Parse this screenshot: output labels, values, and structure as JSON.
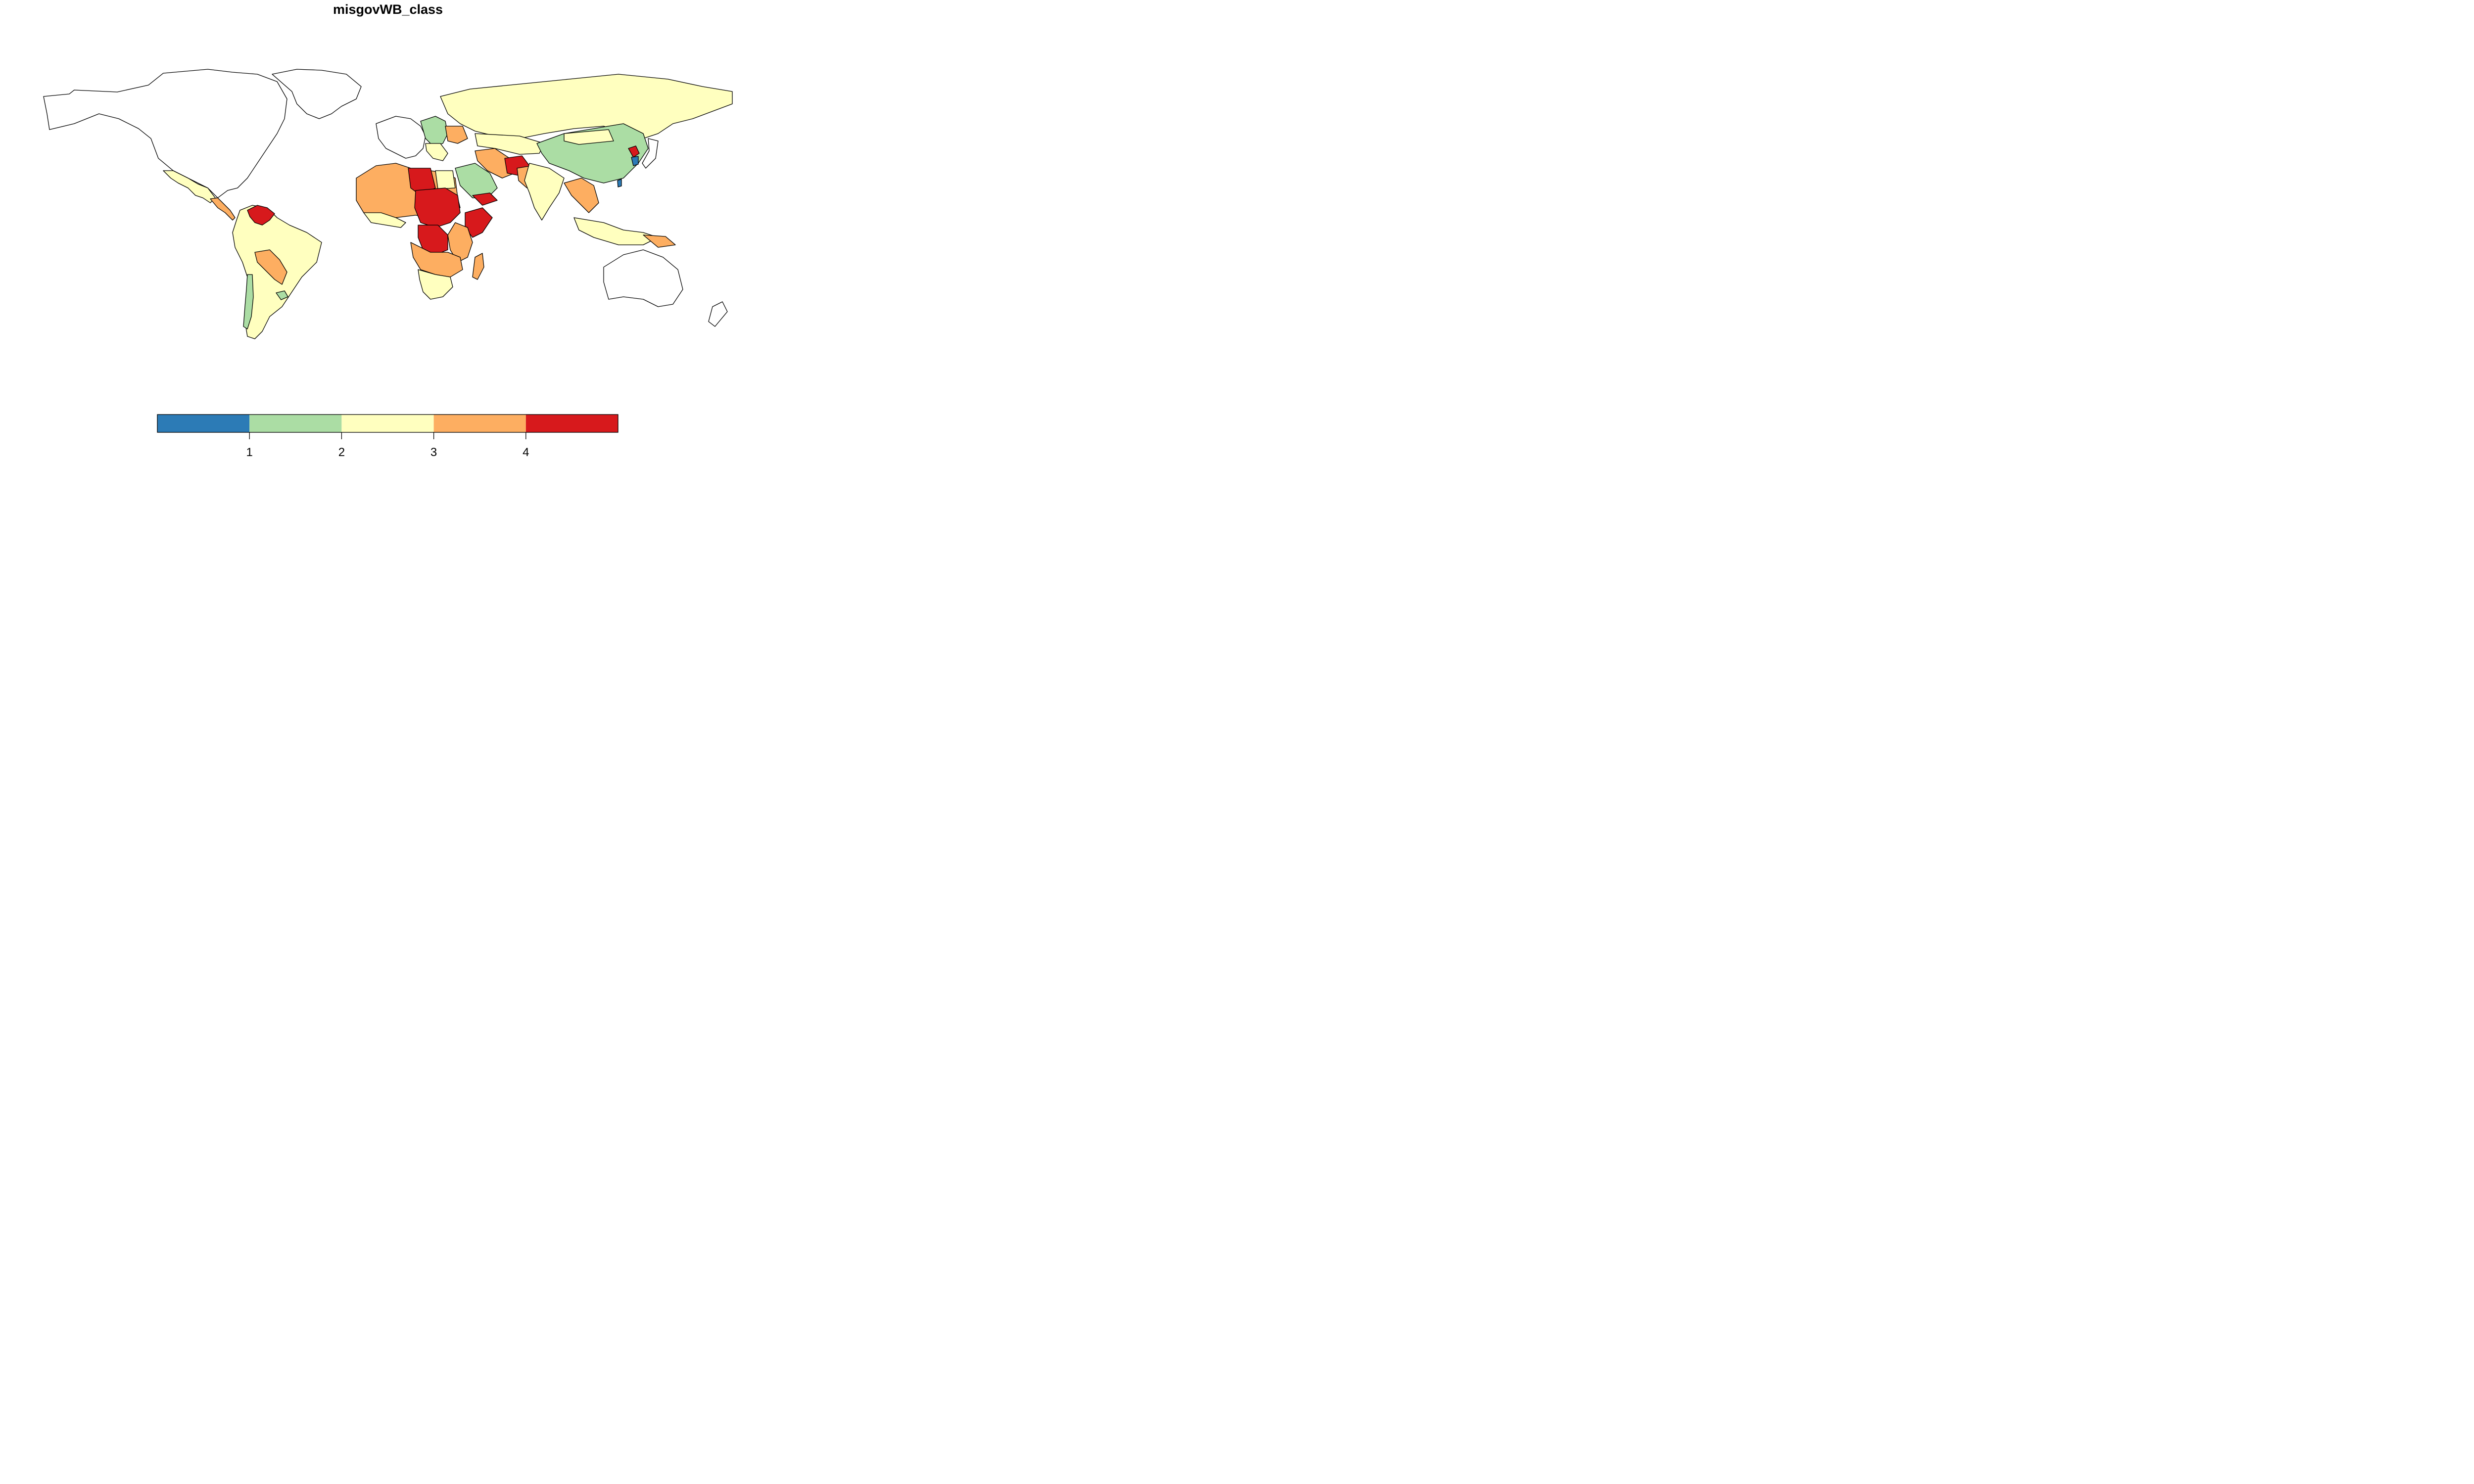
{
  "title": "misgovWB_class",
  "legend": {
    "colors": [
      "#2c7bb6",
      "#abdda4",
      "#ffffbf",
      "#fdae61",
      "#d7191c"
    ],
    "breaks": [
      "1",
      "2",
      "3",
      "4"
    ]
  },
  "chart_data": {
    "type": "choropleth",
    "title": "misgovWB_class",
    "classes": [
      {
        "color": "#2c7bb6"
      },
      {
        "color": "#abdda4"
      },
      {
        "color": "#ffffbf"
      },
      {
        "color": "#fdae61"
      },
      {
        "color": "#d7191c"
      }
    ],
    "tick_labels": [
      "1",
      "2",
      "3",
      "4"
    ],
    "no_data_color": "#ffffff",
    "legend_placement": "bottom"
  }
}
